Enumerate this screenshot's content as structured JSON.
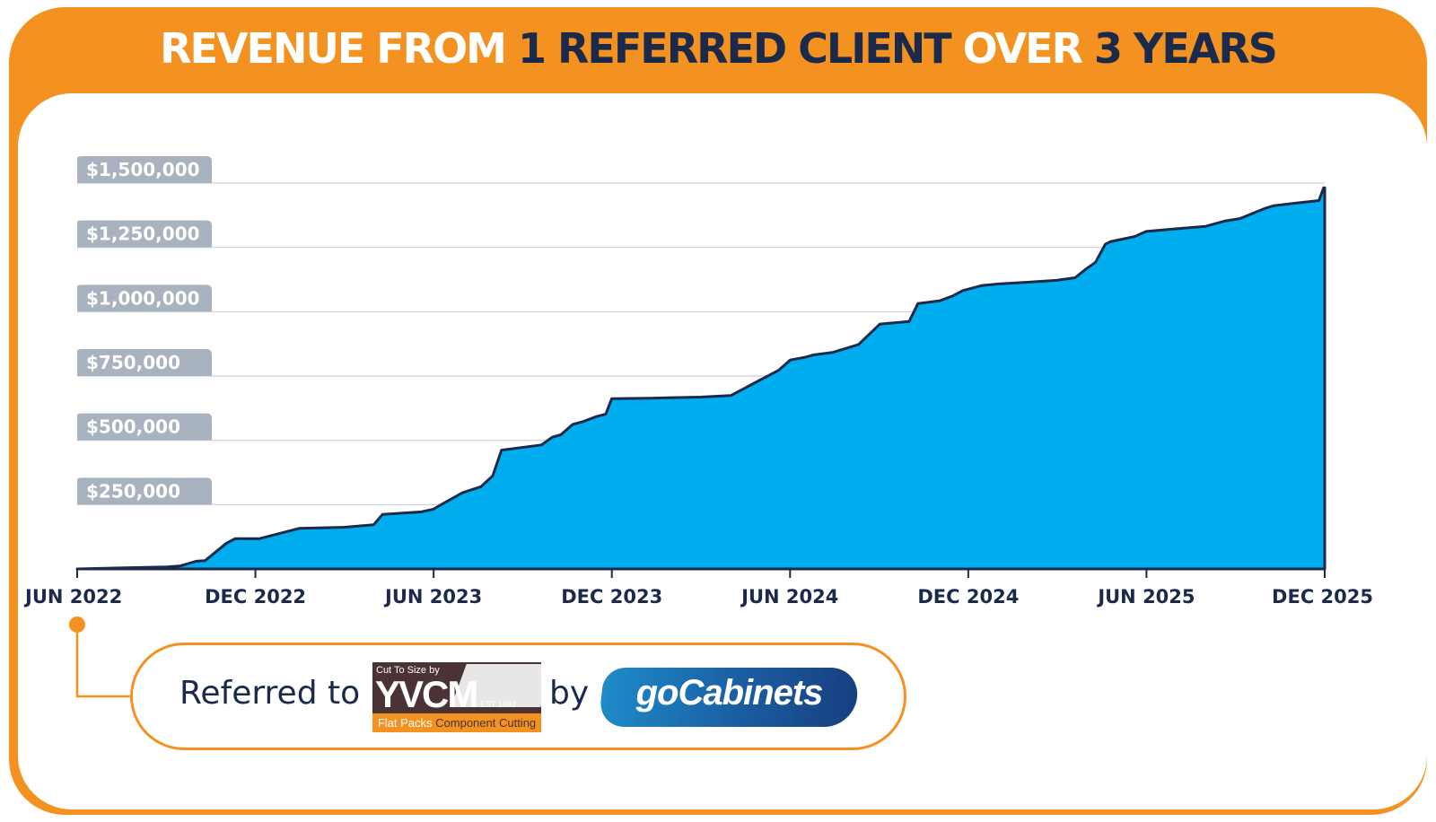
{
  "title": {
    "part1": "REVENUE FROM ",
    "part2": "1 REFERRED CLIENT",
    "part3": " OVER ",
    "part4": "3 YEARS"
  },
  "colors": {
    "accent": "#f39221",
    "navy": "#1b2a4a",
    "area_fill": "#00aeef",
    "label_pill": "#a8b3bf"
  },
  "chart_data": {
    "type": "area",
    "title": "REVENUE FROM 1 REFERRED CLIENT OVER 3 YEARS",
    "y_ticks": [
      {
        "value": 250000,
        "label": "$250,000"
      },
      {
        "value": 500000,
        "label": "$500,000"
      },
      {
        "value": 750000,
        "label": "$750,000"
      },
      {
        "value": 1000000,
        "label": "$1,000,000"
      },
      {
        "value": 1250000,
        "label": "$1,250,000"
      },
      {
        "value": 1500000,
        "label": "$1,500,000"
      }
    ],
    "x_ticks": [
      "JUN 2022",
      "DEC 2022",
      "JUN 2023",
      "DEC 2023",
      "JUN 2024",
      "DEC 2024",
      "JUN 2025",
      "DEC 2025"
    ],
    "xlim": [
      "2022-06-01",
      "2025-12-01"
    ],
    "ylim": [
      0,
      1500000
    ],
    "grid": true,
    "x": [
      "2022-06-01",
      "2022-09-01",
      "2022-09-15",
      "2022-10-01",
      "2022-10-10",
      "2022-11-01",
      "2022-11-10",
      "2022-12-05",
      "2023-01-15",
      "2023-03-01",
      "2023-04-01",
      "2023-04-10",
      "2023-05-20",
      "2023-06-01",
      "2023-06-10",
      "2023-07-01",
      "2023-07-20",
      "2023-08-01",
      "2023-08-10",
      "2023-09-20",
      "2023-10-01",
      "2023-10-10",
      "2023-10-22",
      "2023-11-01",
      "2023-11-15",
      "2023-11-25",
      "2023-12-01",
      "2024-01-10",
      "2024-02-01",
      "2024-03-01",
      "2024-04-01",
      "2024-04-15",
      "2024-04-25",
      "2024-05-10",
      "2024-05-20",
      "2024-06-01",
      "2024-06-15",
      "2024-06-25",
      "2024-07-15",
      "2024-08-01",
      "2024-08-10",
      "2024-09-01",
      "2024-10-01",
      "2024-10-10",
      "2024-11-01",
      "2024-11-15",
      "2024-11-25",
      "2024-12-15",
      "2025-01-01",
      "2025-02-01",
      "2025-03-01",
      "2025-03-20",
      "2025-04-01",
      "2025-04-10",
      "2025-04-20",
      "2025-04-25",
      "2025-05-20",
      "2025-06-01",
      "2025-07-01",
      "2025-08-01",
      "2025-08-20",
      "2025-09-05",
      "2025-10-01",
      "2025-10-10",
      "2025-11-01",
      "2025-11-25",
      "2025-11-30"
    ],
    "values": [
      0,
      8000,
      12000,
      30000,
      32000,
      100000,
      118000,
      118000,
      158000,
      162000,
      172000,
      212000,
      222000,
      232000,
      252000,
      296000,
      320000,
      362000,
      462000,
      482000,
      512000,
      522000,
      562000,
      572000,
      592000,
      602000,
      662000,
      664000,
      666000,
      668000,
      674000,
      702000,
      722000,
      752000,
      772000,
      812000,
      822000,
      832000,
      842000,
      862000,
      872000,
      952000,
      962000,
      1032000,
      1042000,
      1062000,
      1082000,
      1102000,
      1108000,
      1115000,
      1122000,
      1132000,
      1168000,
      1192000,
      1262000,
      1272000,
      1292000,
      1312000,
      1322000,
      1332000,
      1352000,
      1362000,
      1402000,
      1412000,
      1422000,
      1432000,
      1482000
    ]
  },
  "footer": {
    "referred_to": "Referred to",
    "by": "by",
    "yvcm_logo": {
      "tagline": "Cut To Size by",
      "name": "YVCM",
      "est": "EST 1992",
      "bottom_a": "Flat Packs",
      "bottom_b": "Component Cutting"
    },
    "gocabinets_logo": "goCabinets"
  }
}
